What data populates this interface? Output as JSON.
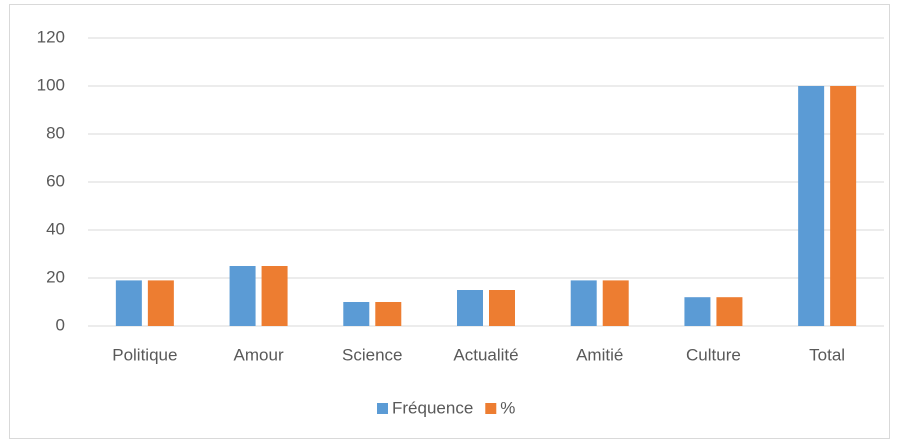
{
  "chart_data": {
    "type": "bar",
    "categories": [
      "Politique",
      "Amour",
      "Science",
      "Actualité",
      "Amitié",
      "Culture",
      "Total"
    ],
    "series": [
      {
        "name": "Fréquence",
        "color": "#5b9bd5",
        "values": [
          19,
          25,
          10,
          15,
          19,
          12,
          100
        ]
      },
      {
        "name": "%",
        "color": "#ed7d31",
        "values": [
          19,
          25,
          10,
          15,
          19,
          12,
          100
        ]
      }
    ],
    "ylim": [
      0,
      120
    ],
    "yticks": [
      0,
      20,
      40,
      60,
      80,
      100,
      120
    ],
    "grid": true,
    "legend": "bottom"
  }
}
